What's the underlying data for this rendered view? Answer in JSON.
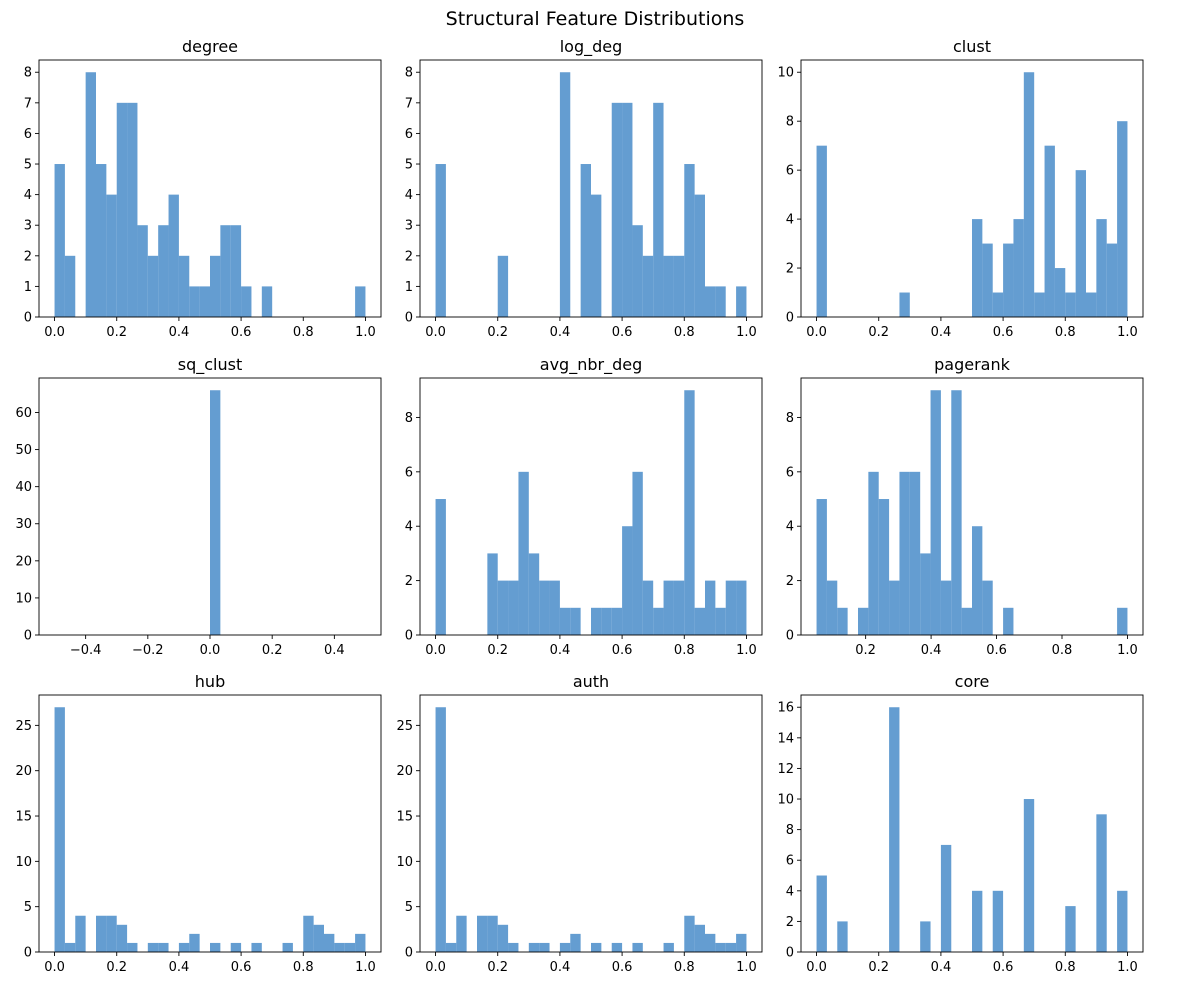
{
  "chart_data": {
    "suptitle": "Structural Feature Distributions",
    "bar_color": "#3d85c6",
    "bar_opacity": 0.8,
    "panels": [
      {
        "type": "bar",
        "title": "degree",
        "xlim": [
          -0.05,
          1.05
        ],
        "ylim": [
          0,
          8.4
        ],
        "xticks": [
          0,
          0.2,
          0.4,
          0.6,
          0.8,
          1.0
        ],
        "xtick_labels": [
          "0.0",
          "0.2",
          "0.4",
          "0.6",
          "0.8",
          "1.0"
        ],
        "yticks": [
          0,
          1,
          2,
          3,
          4,
          5,
          6,
          7,
          8
        ],
        "ytick_labels": [
          "0",
          "1",
          "2",
          "3",
          "4",
          "5",
          "6",
          "7",
          "8"
        ],
        "bins": [
          0,
          1
        ],
        "counts": [
          5,
          2,
          0,
          8,
          5,
          4,
          7,
          7,
          3,
          2,
          3,
          4,
          2,
          1,
          1,
          2,
          3,
          3,
          1,
          0,
          1,
          0,
          0,
          0,
          0,
          0,
          0,
          0,
          0,
          1
        ]
      },
      {
        "type": "bar",
        "title": "log_deg",
        "xlim": [
          -0.05,
          1.05
        ],
        "ylim": [
          0,
          8.4
        ],
        "xticks": [
          0,
          0.2,
          0.4,
          0.6,
          0.8,
          1.0
        ],
        "xtick_labels": [
          "0.0",
          "0.2",
          "0.4",
          "0.6",
          "0.8",
          "1.0"
        ],
        "yticks": [
          0,
          1,
          2,
          3,
          4,
          5,
          6,
          7,
          8
        ],
        "ytick_labels": [
          "0",
          "1",
          "2",
          "3",
          "4",
          "5",
          "6",
          "7",
          "8"
        ],
        "bins": [
          0,
          1
        ],
        "counts": [
          5,
          0,
          0,
          0,
          0,
          0,
          2,
          0,
          0,
          0,
          0,
          0,
          8,
          0,
          5,
          4,
          0,
          7,
          7,
          3,
          2,
          7,
          2,
          2,
          5,
          4,
          1,
          1,
          0,
          1
        ]
      },
      {
        "type": "bar",
        "title": "clust",
        "xlim": [
          -0.05,
          1.05
        ],
        "ylim": [
          0,
          10.5
        ],
        "xticks": [
          0,
          0.2,
          0.4,
          0.6,
          0.8,
          1.0
        ],
        "xtick_labels": [
          "0.0",
          "0.2",
          "0.4",
          "0.6",
          "0.8",
          "1.0"
        ],
        "yticks": [
          0,
          2,
          4,
          6,
          8,
          10
        ],
        "ytick_labels": [
          "0",
          "2",
          "4",
          "6",
          "8",
          "10"
        ],
        "bins": [
          0,
          1
        ],
        "counts": [
          7,
          0,
          0,
          0,
          0,
          0,
          0,
          0,
          1,
          0,
          0,
          0,
          0,
          0,
          0,
          4,
          3,
          1,
          3,
          4,
          10,
          1,
          7,
          2,
          1,
          6,
          1,
          4,
          3,
          8
        ]
      },
      {
        "type": "bar",
        "title": "sq_clust",
        "xlim": [
          -0.55,
          0.55
        ],
        "ylim": [
          0,
          69.3
        ],
        "xticks": [
          -0.4,
          -0.2,
          0,
          0.2,
          0.4
        ],
        "xtick_labels": [
          "−0.4",
          "−0.2",
          "0.0",
          "0.2",
          "0.4"
        ],
        "yticks": [
          0,
          10,
          20,
          30,
          40,
          50,
          60
        ],
        "ytick_labels": [
          "0",
          "10",
          "20",
          "30",
          "40",
          "50",
          "60"
        ],
        "bins": [
          -0.5,
          0.5
        ],
        "counts": [
          0,
          0,
          0,
          0,
          0,
          0,
          0,
          0,
          0,
          0,
          0,
          0,
          0,
          0,
          0,
          66,
          0,
          0,
          0,
          0,
          0,
          0,
          0,
          0,
          0,
          0,
          0,
          0,
          0,
          0
        ]
      },
      {
        "type": "bar",
        "title": "avg_nbr_deg",
        "xlim": [
          -0.05,
          1.05
        ],
        "ylim": [
          0,
          9.45
        ],
        "xticks": [
          0,
          0.2,
          0.4,
          0.6,
          0.8,
          1.0
        ],
        "xtick_labels": [
          "0.0",
          "0.2",
          "0.4",
          "0.6",
          "0.8",
          "1.0"
        ],
        "yticks": [
          0,
          2,
          4,
          6,
          8
        ],
        "ytick_labels": [
          "0",
          "2",
          "4",
          "6",
          "8"
        ],
        "bins": [
          0,
          1
        ],
        "counts": [
          5,
          0,
          0,
          0,
          0,
          3,
          2,
          2,
          6,
          3,
          2,
          2,
          1,
          1,
          0,
          1,
          1,
          1,
          4,
          6,
          2,
          1,
          2,
          2,
          9,
          1,
          2,
          1,
          2,
          2
        ]
      },
      {
        "type": "bar",
        "title": "pagerank",
        "xlim": [
          0.0025,
          1.0475
        ],
        "ylim": [
          0,
          9.45
        ],
        "xticks": [
          0.2,
          0.4,
          0.6,
          0.8,
          1.0
        ],
        "xtick_labels": [
          "0.2",
          "0.4",
          "0.6",
          "0.8",
          "1.0"
        ],
        "yticks": [
          0,
          2,
          4,
          6,
          8
        ],
        "ytick_labels": [
          "0",
          "2",
          "4",
          "6",
          "8"
        ],
        "bins": [
          0.05,
          1
        ],
        "counts": [
          5,
          2,
          1,
          0,
          1,
          6,
          5,
          2,
          6,
          6,
          3,
          9,
          2,
          9,
          1,
          4,
          2,
          0,
          1,
          0,
          0,
          0,
          0,
          0,
          0,
          0,
          0,
          0,
          0,
          1
        ]
      },
      {
        "type": "bar",
        "title": "hub",
        "xlim": [
          -0.05,
          1.05
        ],
        "ylim": [
          0,
          28.35
        ],
        "xticks": [
          0,
          0.2,
          0.4,
          0.6,
          0.8,
          1.0
        ],
        "xtick_labels": [
          "0.0",
          "0.2",
          "0.4",
          "0.6",
          "0.8",
          "1.0"
        ],
        "yticks": [
          0,
          5,
          10,
          15,
          20,
          25
        ],
        "ytick_labels": [
          "0",
          "5",
          "10",
          "15",
          "20",
          "25"
        ],
        "bins": [
          0,
          1
        ],
        "counts": [
          27,
          1,
          4,
          0,
          4,
          4,
          3,
          1,
          0,
          1,
          1,
          0,
          1,
          2,
          0,
          1,
          0,
          1,
          0,
          1,
          0,
          0,
          1,
          0,
          4,
          3,
          2,
          1,
          1,
          2
        ]
      },
      {
        "type": "bar",
        "title": "auth",
        "xlim": [
          -0.05,
          1.05
        ],
        "ylim": [
          0,
          28.35
        ],
        "xticks": [
          0,
          0.2,
          0.4,
          0.6,
          0.8,
          1.0
        ],
        "xtick_labels": [
          "0.0",
          "0.2",
          "0.4",
          "0.6",
          "0.8",
          "1.0"
        ],
        "yticks": [
          0,
          5,
          10,
          15,
          20,
          25
        ],
        "ytick_labels": [
          "0",
          "5",
          "10",
          "15",
          "20",
          "25"
        ],
        "bins": [
          0,
          1
        ],
        "counts": [
          27,
          1,
          4,
          0,
          4,
          4,
          3,
          1,
          0,
          1,
          1,
          0,
          1,
          2,
          0,
          1,
          0,
          1,
          0,
          1,
          0,
          0,
          1,
          0,
          4,
          3,
          2,
          1,
          1,
          2
        ]
      },
      {
        "type": "bar",
        "title": "core",
        "xlim": [
          -0.05,
          1.05
        ],
        "ylim": [
          0,
          16.8
        ],
        "xticks": [
          0,
          0.2,
          0.4,
          0.6,
          0.8,
          1.0
        ],
        "xtick_labels": [
          "0.0",
          "0.2",
          "0.4",
          "0.6",
          "0.8",
          "1.0"
        ],
        "yticks": [
          0,
          2,
          4,
          6,
          8,
          10,
          12,
          14,
          16
        ],
        "ytick_labels": [
          "0",
          "2",
          "4",
          "6",
          "8",
          "10",
          "12",
          "14",
          "16"
        ],
        "bins": [
          0,
          1
        ],
        "counts": [
          5,
          0,
          2,
          0,
          0,
          0,
          0,
          16,
          0,
          0,
          2,
          0,
          7,
          0,
          0,
          4,
          0,
          4,
          0,
          0,
          10,
          0,
          0,
          0,
          3,
          0,
          0,
          9,
          0,
          4
        ]
      }
    ]
  }
}
